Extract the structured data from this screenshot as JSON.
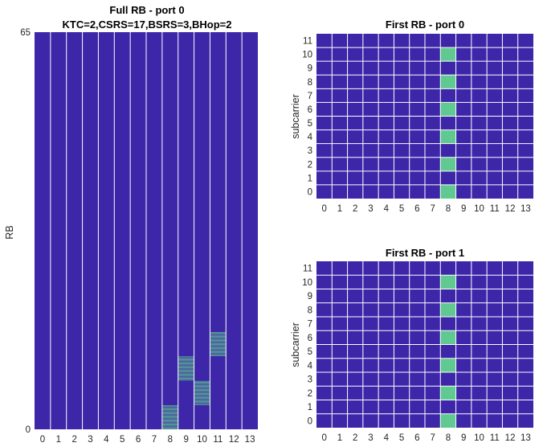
{
  "colors": {
    "background": "#3d26a8",
    "active": "#5fc991",
    "grid": "#ffffff"
  },
  "chart_data": [
    {
      "type": "heatmap",
      "title": "Full RB - port 0",
      "subtitle": "KTC=2,CSRS=17,BSRS=3,BHop=2",
      "xlabel": "",
      "ylabel": "RB",
      "x_ticks": [
        "0",
        "1",
        "2",
        "3",
        "4",
        "5",
        "6",
        "7",
        "8",
        "9",
        "10",
        "11",
        "12",
        "13"
      ],
      "y_ticks": [
        "0",
        "65"
      ],
      "ylim": [
        0,
        65
      ],
      "grid": "vertical",
      "active_cells": [
        {
          "x": 8,
          "y_start": 0,
          "y_end": 4,
          "pattern": "every-other-subcarrier"
        },
        {
          "x": 9,
          "y_start": 8,
          "y_end": 12,
          "pattern": "every-other-subcarrier"
        },
        {
          "x": 10,
          "y_start": 4,
          "y_end": 8,
          "pattern": "every-other-subcarrier"
        },
        {
          "x": 11,
          "y_start": 12,
          "y_end": 16,
          "pattern": "every-other-subcarrier"
        }
      ]
    },
    {
      "type": "heatmap",
      "title": "First RB - port 0",
      "xlabel": "",
      "ylabel": "subcarrier",
      "x_ticks": [
        "0",
        "1",
        "2",
        "3",
        "4",
        "5",
        "6",
        "7",
        "8",
        "9",
        "10",
        "11",
        "12",
        "13"
      ],
      "y_ticks": [
        "0",
        "1",
        "2",
        "3",
        "4",
        "5",
        "6",
        "7",
        "8",
        "9",
        "10",
        "11"
      ],
      "grid": "both",
      "active_cells": [
        {
          "x": 8,
          "y": 0
        },
        {
          "x": 8,
          "y": 2
        },
        {
          "x": 8,
          "y": 4
        },
        {
          "x": 8,
          "y": 6
        },
        {
          "x": 8,
          "y": 8
        },
        {
          "x": 8,
          "y": 10
        }
      ]
    },
    {
      "type": "heatmap",
      "title": "First RB - port 1",
      "xlabel": "",
      "ylabel": "subcarrier",
      "x_ticks": [
        "0",
        "1",
        "2",
        "3",
        "4",
        "5",
        "6",
        "7",
        "8",
        "9",
        "10",
        "11",
        "12",
        "13"
      ],
      "y_ticks": [
        "0",
        "1",
        "2",
        "3",
        "4",
        "5",
        "6",
        "7",
        "8",
        "9",
        "10",
        "11"
      ],
      "grid": "both",
      "active_cells": [
        {
          "x": 8,
          "y": 0
        },
        {
          "x": 8,
          "y": 2
        },
        {
          "x": 8,
          "y": 4
        },
        {
          "x": 8,
          "y": 6
        },
        {
          "x": 8,
          "y": 8
        },
        {
          "x": 8,
          "y": 10
        }
      ]
    }
  ]
}
